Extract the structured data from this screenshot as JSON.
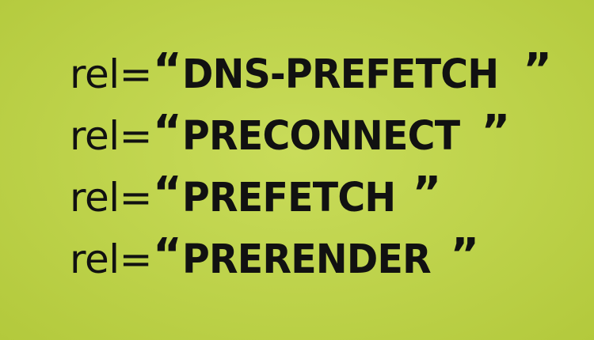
{
  "background": {
    "color": "#bdd24a"
  },
  "lines": [
    {
      "prefix": "rel=",
      "open_quote": "“",
      "value": "DNS-PREFETCH",
      "close_quote": "”"
    },
    {
      "prefix": "rel=",
      "open_quote": "“",
      "value": "PRECONNECT",
      "close_quote": "”"
    },
    {
      "prefix": "rel=",
      "open_quote": "“",
      "value": "PREFETCH",
      "close_quote": "”"
    },
    {
      "prefix": "rel=",
      "open_quote": "“",
      "value": "PRERENDER",
      "close_quote": "”"
    }
  ]
}
